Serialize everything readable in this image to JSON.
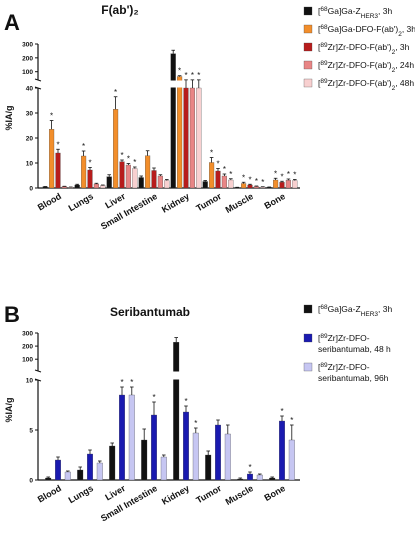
{
  "chart_data": [
    {
      "panel_letter": "A",
      "type": "bar",
      "title": "F(ab')₂",
      "ylabel": "%IA/g",
      "axis": {
        "lower": {
          "ylim": [
            0,
            40
          ],
          "ticks": [
            0,
            10,
            20,
            30,
            40
          ]
        },
        "upper": {
          "ylim": [
            40,
            300
          ],
          "ticks": [
            100,
            200,
            300
          ]
        }
      },
      "legend_position": "right",
      "categories": [
        "Blood",
        "Lungs",
        "Liver",
        "Small Intestine",
        "Kidney",
        "Tumor",
        "Muscle",
        "Bone"
      ],
      "series": [
        {
          "name": "[⁶⁸Ga]Ga-Z_HER3, 3h",
          "color": "#111111",
          "values": [
            0.5,
            1.2,
            4.5,
            4.2,
            230,
            2.6,
            0.2,
            0.3
          ],
          "errors": [
            0.1,
            0.3,
            0.8,
            0.6,
            25,
            0.4,
            0.1,
            0.1
          ],
          "stars": [
            0,
            0,
            0,
            0,
            0,
            0,
            0,
            0
          ]
        },
        {
          "name": "[⁶⁸Ga]Ga-DFO-F(ab')₂, 3h",
          "color": "#f28e2b",
          "values": [
            23.5,
            12.8,
            31.5,
            12.9,
            65,
            10.2,
            1.8,
            3.2
          ],
          "errors": [
            3.5,
            2.0,
            5.0,
            2.0,
            6,
            2.0,
            0.5,
            0.7
          ],
          "stars": [
            1,
            1,
            1,
            0,
            1,
            1,
            1,
            1
          ]
        },
        {
          "name": "[⁸⁹Zr]Zr-DFO-F(ab')₂, 3h",
          "color": "#b71c1c",
          "values": [
            14.0,
            7.2,
            10.5,
            7.0,
            40,
            6.8,
            1.2,
            2.3
          ],
          "errors": [
            1.5,
            1.0,
            0.7,
            1.0,
            1,
            1.0,
            0.3,
            0.4
          ],
          "stars": [
            1,
            1,
            1,
            0,
            1,
            1,
            1,
            1
          ]
        },
        {
          "name": "[⁸⁹Zr]Zr-DFO-F(ab')₂, 24h",
          "color": "#e88585",
          "values": [
            0.6,
            1.6,
            9.2,
            4.8,
            40,
            4.8,
            0.6,
            3.1
          ],
          "errors": [
            0.1,
            0.3,
            0.6,
            0.5,
            1,
            0.8,
            0.2,
            0.5
          ],
          "stars": [
            0,
            0,
            1,
            0,
            1,
            1,
            1,
            1
          ]
        },
        {
          "name": "[⁸⁹Zr]Zr-DFO-F(ab')₂, 48h",
          "color": "#f8d0d0",
          "values": [
            0.3,
            1.0,
            7.8,
            3.0,
            40,
            3.2,
            0.4,
            3.0
          ],
          "errors": [
            0.1,
            0.2,
            0.6,
            0.4,
            1,
            0.5,
            0.1,
            0.4
          ],
          "stars": [
            0,
            0,
            1,
            0,
            1,
            1,
            1,
            1
          ]
        }
      ]
    },
    {
      "panel_letter": "B",
      "type": "bar",
      "title": "Seribantumab",
      "ylabel": "%IA/g",
      "axis": {
        "lower": {
          "ylim": [
            0,
            10
          ],
          "ticks": [
            0,
            5,
            10
          ]
        },
        "upper": {
          "ylim": [
            10,
            300
          ],
          "ticks": [
            100,
            200,
            300
          ]
        }
      },
      "legend_position": "right",
      "categories": [
        "Blood",
        "Lungs",
        "Liver",
        "Small Intestine",
        "Kidney",
        "Tumor",
        "Muscle",
        "Bone"
      ],
      "series": [
        {
          "name": "[⁶⁸Ga]Ga-Z_HER3, 3h",
          "color": "#111111",
          "values": [
            0.2,
            1.0,
            3.4,
            4.0,
            230,
            2.5,
            0.1,
            0.2
          ],
          "errors": [
            0.1,
            0.3,
            0.3,
            1.1,
            35,
            0.4,
            0.1,
            0.1
          ],
          "stars": [
            0,
            0,
            0,
            0,
            0,
            0,
            0,
            0
          ]
        },
        {
          "name": "[⁸⁹Zr]Zr-DFO-seribantumab, 48 h",
          "color": "#1a1ab0",
          "values": [
            2.0,
            2.6,
            8.5,
            6.5,
            6.8,
            5.5,
            0.6,
            5.9
          ],
          "errors": [
            0.3,
            0.4,
            0.8,
            1.3,
            0.6,
            0.5,
            0.2,
            0.5
          ],
          "stars": [
            0,
            0,
            1,
            1,
            1,
            0,
            1,
            1
          ]
        },
        {
          "name": "[⁸⁹Zr]Zr-DFO-seribantumab, 96h",
          "color": "#c6c6f2",
          "values": [
            0.8,
            1.7,
            8.5,
            2.3,
            4.7,
            4.6,
            0.5,
            4.0
          ],
          "errors": [
            0.1,
            0.2,
            0.8,
            0.2,
            0.5,
            0.9,
            0.1,
            1.5
          ],
          "stars": [
            0,
            0,
            1,
            0,
            1,
            0,
            0,
            1
          ]
        }
      ]
    }
  ]
}
